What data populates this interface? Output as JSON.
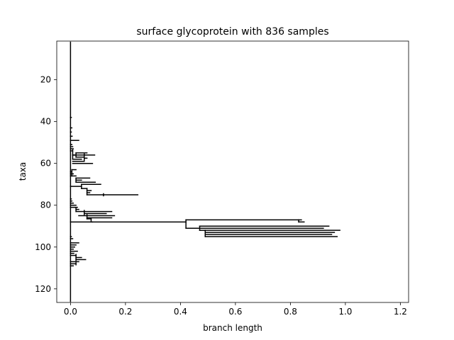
{
  "chart_data": {
    "type": "tree",
    "title": "surface glycoprotein with 836 samples",
    "xlabel": "branch length",
    "ylabel": "taxa",
    "xlim": [
      -0.05,
      1.23
    ],
    "ylim": [
      126.5,
      1.5
    ],
    "x_ticks": [
      0.0,
      0.2,
      0.4,
      0.6,
      0.8,
      1.0,
      1.2
    ],
    "x_tick_labels": [
      "0.0",
      "0.2",
      "0.4",
      "0.6",
      "0.8",
      "1.0",
      "1.2"
    ],
    "y_ticks": [
      20,
      40,
      60,
      80,
      100,
      120
    ],
    "y_tick_labels": [
      "20",
      "40",
      "60",
      "80",
      "100",
      "120"
    ],
    "grid": false,
    "segments": [
      [
        0,
        2,
        0,
        126
      ],
      [
        0,
        38,
        0.003,
        38
      ],
      [
        0,
        43,
        0.005,
        43
      ],
      [
        0,
        45,
        0.003,
        45
      ],
      [
        0,
        47,
        0.006,
        47
      ],
      [
        0,
        49,
        0.03,
        49
      ],
      [
        0,
        51,
        0.005,
        51
      ],
      [
        0,
        52,
        0.008,
        52
      ],
      [
        0,
        53,
        0.01,
        53
      ],
      [
        0,
        54,
        0.008,
        54
      ],
      [
        0.008,
        53.5,
        0.008,
        58
      ],
      [
        0.008,
        56,
        0.02,
        56
      ],
      [
        0.02,
        55,
        0.02,
        57
      ],
      [
        0.02,
        55,
        0.06,
        55
      ],
      [
        0.02,
        57,
        0.05,
        57
      ],
      [
        0.008,
        56,
        0.088,
        56
      ],
      [
        0.05,
        55.5,
        0.05,
        58.5
      ],
      [
        0.05,
        57.5,
        0.06,
        57.5
      ],
      [
        0.008,
        58,
        0.04,
        58
      ],
      [
        0.008,
        59,
        0.05,
        59
      ],
      [
        0.008,
        60,
        0.08,
        60
      ],
      [
        0,
        64,
        0.005,
        64
      ],
      [
        0,
        65,
        0.01,
        65
      ],
      [
        0.005,
        63,
        0.005,
        66
      ],
      [
        0.005,
        63,
        0.02,
        63
      ],
      [
        0,
        66,
        0.02,
        66
      ],
      [
        0.02,
        67,
        0.02,
        69
      ],
      [
        0.02,
        67,
        0.07,
        67
      ],
      [
        0.02,
        68,
        0.04,
        68
      ],
      [
        0.02,
        69,
        0.09,
        69
      ],
      [
        0,
        71,
        0.04,
        71
      ],
      [
        0.04,
        70,
        0.04,
        72
      ],
      [
        0.04,
        70,
        0.11,
        70
      ],
      [
        0.04,
        72,
        0.06,
        72
      ],
      [
        0.06,
        72,
        0.06,
        75
      ],
      [
        0.06,
        73,
        0.075,
        73
      ],
      [
        0.06,
        74,
        0.07,
        74
      ],
      [
        0.06,
        75,
        0.12,
        75
      ],
      [
        0.12,
        75,
        0.245,
        75
      ],
      [
        0.12,
        74.5,
        0.12,
        75.5
      ],
      [
        0,
        77,
        0.003,
        77
      ],
      [
        0,
        78,
        0.005,
        78
      ],
      [
        0,
        79,
        0.01,
        79
      ],
      [
        0,
        80,
        0.01,
        80
      ],
      [
        0.01,
        80,
        0.02,
        80
      ],
      [
        0,
        81,
        0.015,
        81
      ],
      [
        0.015,
        81,
        0.025,
        81
      ],
      [
        0.02,
        81,
        0.02,
        83
      ],
      [
        0.02,
        82,
        0.03,
        82
      ],
      [
        0.02,
        83,
        0.05,
        83
      ],
      [
        0.05,
        83,
        0.15,
        83
      ],
      [
        0.05,
        82.5,
        0.05,
        84.5
      ],
      [
        0.05,
        84,
        0.13,
        84
      ],
      [
        0.03,
        85,
        0.06,
        85
      ],
      [
        0.06,
        84.5,
        0.06,
        86.5
      ],
      [
        0.06,
        85,
        0.16,
        85
      ],
      [
        0.06,
        86,
        0.15,
        86
      ],
      [
        0.06,
        86.5,
        0.075,
        86.5
      ],
      [
        0,
        88,
        0.08,
        88
      ],
      [
        0.075,
        86.5,
        0.075,
        88
      ],
      [
        0.08,
        88,
        0.42,
        88
      ],
      [
        0.42,
        87,
        0.42,
        91
      ],
      [
        0.42,
        87,
        0.83,
        87
      ],
      [
        0.83,
        87,
        0.83,
        88
      ],
      [
        0.83,
        87,
        0.84,
        87
      ],
      [
        0.83,
        88,
        0.85,
        88
      ],
      [
        0.42,
        91,
        0.47,
        91
      ],
      [
        0.47,
        90,
        0.47,
        92
      ],
      [
        0.47,
        90,
        0.94,
        90
      ],
      [
        0.47,
        91,
        0.92,
        91
      ],
      [
        0.47,
        92,
        0.49,
        92
      ],
      [
        0.49,
        92,
        0.49,
        95
      ],
      [
        0.49,
        92,
        0.98,
        92
      ],
      [
        0.49,
        93,
        0.96,
        93
      ],
      [
        0.49,
        94,
        0.95,
        94
      ],
      [
        0.49,
        95,
        0.97,
        95
      ],
      [
        0,
        95,
        0.003,
        95
      ],
      [
        0,
        96,
        0.008,
        96
      ],
      [
        0,
        98,
        0.03,
        98
      ],
      [
        0,
        99,
        0.02,
        99
      ],
      [
        0,
        100,
        0.015,
        100
      ],
      [
        0,
        101,
        0.01,
        101
      ],
      [
        0,
        102,
        0.025,
        102
      ],
      [
        0,
        103,
        0.012,
        103
      ],
      [
        0,
        104,
        0.02,
        104
      ],
      [
        0.02,
        103.5,
        0.02,
        106.5
      ],
      [
        0.02,
        105,
        0.04,
        105
      ],
      [
        0.02,
        106,
        0.055,
        106
      ],
      [
        0,
        107,
        0.03,
        107
      ],
      [
        0,
        108,
        0.02,
        108
      ],
      [
        0.02,
        107.5,
        0.02,
        108.5
      ],
      [
        0,
        109,
        0.01,
        109
      ]
    ]
  }
}
